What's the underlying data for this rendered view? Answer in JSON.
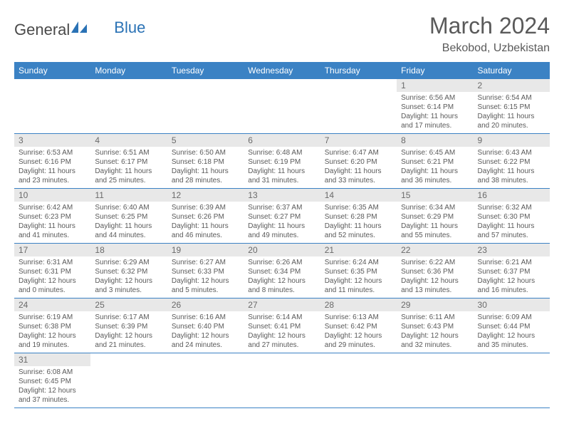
{
  "logo": {
    "general": "General",
    "blue": "Blue"
  },
  "title": "March 2024",
  "location": "Bekobod, Uzbekistan",
  "colors": {
    "header_bg": "#3b82c4",
    "header_text": "#ffffff",
    "daynum_bg": "#e8e8e8",
    "text": "#5a5a5a",
    "border": "#3b82c4"
  },
  "day_headers": [
    "Sunday",
    "Monday",
    "Tuesday",
    "Wednesday",
    "Thursday",
    "Friday",
    "Saturday"
  ],
  "weeks": [
    [
      {
        "empty": true
      },
      {
        "empty": true
      },
      {
        "empty": true
      },
      {
        "empty": true
      },
      {
        "empty": true
      },
      {
        "num": "1",
        "sunrise": "Sunrise: 6:56 AM",
        "sunset": "Sunset: 6:14 PM",
        "day1": "Daylight: 11 hours",
        "day2": "and 17 minutes."
      },
      {
        "num": "2",
        "sunrise": "Sunrise: 6:54 AM",
        "sunset": "Sunset: 6:15 PM",
        "day1": "Daylight: 11 hours",
        "day2": "and 20 minutes."
      }
    ],
    [
      {
        "num": "3",
        "sunrise": "Sunrise: 6:53 AM",
        "sunset": "Sunset: 6:16 PM",
        "day1": "Daylight: 11 hours",
        "day2": "and 23 minutes."
      },
      {
        "num": "4",
        "sunrise": "Sunrise: 6:51 AM",
        "sunset": "Sunset: 6:17 PM",
        "day1": "Daylight: 11 hours",
        "day2": "and 25 minutes."
      },
      {
        "num": "5",
        "sunrise": "Sunrise: 6:50 AM",
        "sunset": "Sunset: 6:18 PM",
        "day1": "Daylight: 11 hours",
        "day2": "and 28 minutes."
      },
      {
        "num": "6",
        "sunrise": "Sunrise: 6:48 AM",
        "sunset": "Sunset: 6:19 PM",
        "day1": "Daylight: 11 hours",
        "day2": "and 31 minutes."
      },
      {
        "num": "7",
        "sunrise": "Sunrise: 6:47 AM",
        "sunset": "Sunset: 6:20 PM",
        "day1": "Daylight: 11 hours",
        "day2": "and 33 minutes."
      },
      {
        "num": "8",
        "sunrise": "Sunrise: 6:45 AM",
        "sunset": "Sunset: 6:21 PM",
        "day1": "Daylight: 11 hours",
        "day2": "and 36 minutes."
      },
      {
        "num": "9",
        "sunrise": "Sunrise: 6:43 AM",
        "sunset": "Sunset: 6:22 PM",
        "day1": "Daylight: 11 hours",
        "day2": "and 38 minutes."
      }
    ],
    [
      {
        "num": "10",
        "sunrise": "Sunrise: 6:42 AM",
        "sunset": "Sunset: 6:23 PM",
        "day1": "Daylight: 11 hours",
        "day2": "and 41 minutes."
      },
      {
        "num": "11",
        "sunrise": "Sunrise: 6:40 AM",
        "sunset": "Sunset: 6:25 PM",
        "day1": "Daylight: 11 hours",
        "day2": "and 44 minutes."
      },
      {
        "num": "12",
        "sunrise": "Sunrise: 6:39 AM",
        "sunset": "Sunset: 6:26 PM",
        "day1": "Daylight: 11 hours",
        "day2": "and 46 minutes."
      },
      {
        "num": "13",
        "sunrise": "Sunrise: 6:37 AM",
        "sunset": "Sunset: 6:27 PM",
        "day1": "Daylight: 11 hours",
        "day2": "and 49 minutes."
      },
      {
        "num": "14",
        "sunrise": "Sunrise: 6:35 AM",
        "sunset": "Sunset: 6:28 PM",
        "day1": "Daylight: 11 hours",
        "day2": "and 52 minutes."
      },
      {
        "num": "15",
        "sunrise": "Sunrise: 6:34 AM",
        "sunset": "Sunset: 6:29 PM",
        "day1": "Daylight: 11 hours",
        "day2": "and 55 minutes."
      },
      {
        "num": "16",
        "sunrise": "Sunrise: 6:32 AM",
        "sunset": "Sunset: 6:30 PM",
        "day1": "Daylight: 11 hours",
        "day2": "and 57 minutes."
      }
    ],
    [
      {
        "num": "17",
        "sunrise": "Sunrise: 6:31 AM",
        "sunset": "Sunset: 6:31 PM",
        "day1": "Daylight: 12 hours",
        "day2": "and 0 minutes."
      },
      {
        "num": "18",
        "sunrise": "Sunrise: 6:29 AM",
        "sunset": "Sunset: 6:32 PM",
        "day1": "Daylight: 12 hours",
        "day2": "and 3 minutes."
      },
      {
        "num": "19",
        "sunrise": "Sunrise: 6:27 AM",
        "sunset": "Sunset: 6:33 PM",
        "day1": "Daylight: 12 hours",
        "day2": "and 5 minutes."
      },
      {
        "num": "20",
        "sunrise": "Sunrise: 6:26 AM",
        "sunset": "Sunset: 6:34 PM",
        "day1": "Daylight: 12 hours",
        "day2": "and 8 minutes."
      },
      {
        "num": "21",
        "sunrise": "Sunrise: 6:24 AM",
        "sunset": "Sunset: 6:35 PM",
        "day1": "Daylight: 12 hours",
        "day2": "and 11 minutes."
      },
      {
        "num": "22",
        "sunrise": "Sunrise: 6:22 AM",
        "sunset": "Sunset: 6:36 PM",
        "day1": "Daylight: 12 hours",
        "day2": "and 13 minutes."
      },
      {
        "num": "23",
        "sunrise": "Sunrise: 6:21 AM",
        "sunset": "Sunset: 6:37 PM",
        "day1": "Daylight: 12 hours",
        "day2": "and 16 minutes."
      }
    ],
    [
      {
        "num": "24",
        "sunrise": "Sunrise: 6:19 AM",
        "sunset": "Sunset: 6:38 PM",
        "day1": "Daylight: 12 hours",
        "day2": "and 19 minutes."
      },
      {
        "num": "25",
        "sunrise": "Sunrise: 6:17 AM",
        "sunset": "Sunset: 6:39 PM",
        "day1": "Daylight: 12 hours",
        "day2": "and 21 minutes."
      },
      {
        "num": "26",
        "sunrise": "Sunrise: 6:16 AM",
        "sunset": "Sunset: 6:40 PM",
        "day1": "Daylight: 12 hours",
        "day2": "and 24 minutes."
      },
      {
        "num": "27",
        "sunrise": "Sunrise: 6:14 AM",
        "sunset": "Sunset: 6:41 PM",
        "day1": "Daylight: 12 hours",
        "day2": "and 27 minutes."
      },
      {
        "num": "28",
        "sunrise": "Sunrise: 6:13 AM",
        "sunset": "Sunset: 6:42 PM",
        "day1": "Daylight: 12 hours",
        "day2": "and 29 minutes."
      },
      {
        "num": "29",
        "sunrise": "Sunrise: 6:11 AM",
        "sunset": "Sunset: 6:43 PM",
        "day1": "Daylight: 12 hours",
        "day2": "and 32 minutes."
      },
      {
        "num": "30",
        "sunrise": "Sunrise: 6:09 AM",
        "sunset": "Sunset: 6:44 PM",
        "day1": "Daylight: 12 hours",
        "day2": "and 35 minutes."
      }
    ],
    [
      {
        "num": "31",
        "sunrise": "Sunrise: 6:08 AM",
        "sunset": "Sunset: 6:45 PM",
        "day1": "Daylight: 12 hours",
        "day2": "and 37 minutes."
      },
      {
        "empty": true
      },
      {
        "empty": true
      },
      {
        "empty": true
      },
      {
        "empty": true
      },
      {
        "empty": true
      },
      {
        "empty": true
      }
    ]
  ]
}
